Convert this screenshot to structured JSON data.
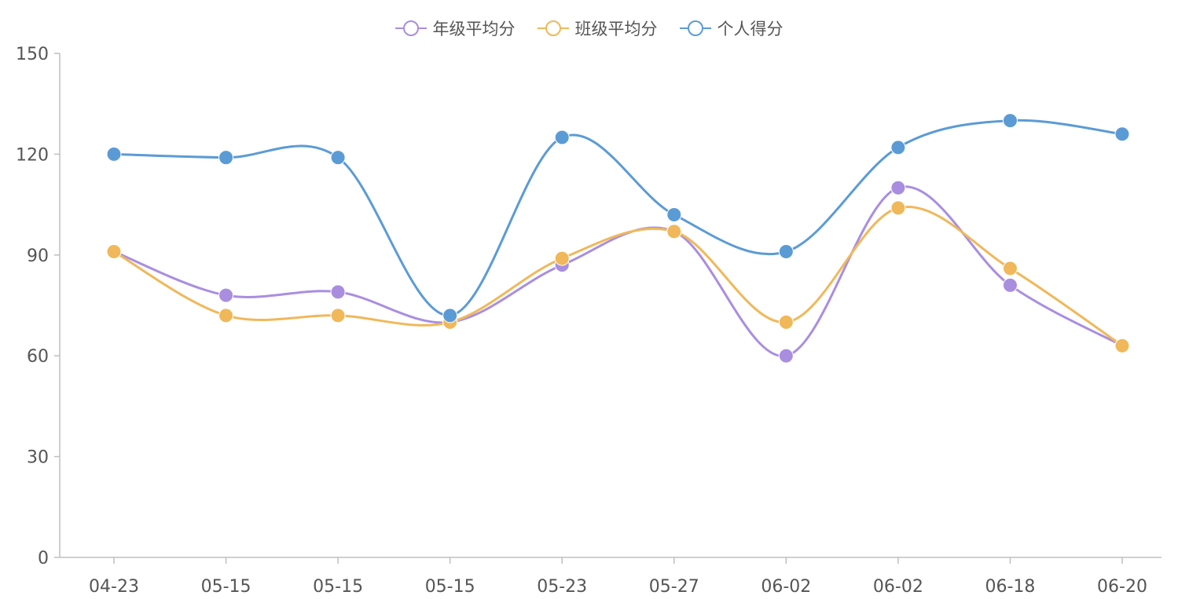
{
  "chart_data": {
    "type": "line",
    "categories": [
      "04-23",
      "05-15",
      "05-15",
      "05-15",
      "05-23",
      "05-27",
      "06-02",
      "06-02",
      "06-18",
      "06-20"
    ],
    "series": [
      {
        "name": "年级平均分",
        "color": "#a98ee0",
        "values": [
          91,
          78,
          79,
          70,
          87,
          97,
          60,
          110,
          81,
          63
        ]
      },
      {
        "name": "班级平均分",
        "color": "#f0b85a",
        "values": [
          91,
          72,
          72,
          70,
          89,
          97,
          70,
          104,
          86,
          63
        ]
      },
      {
        "name": "个人得分",
        "color": "#5b9bd5",
        "values": [
          120,
          119,
          119,
          72,
          125,
          102,
          91,
          122,
          130,
          126
        ]
      }
    ],
    "ylim": [
      0,
      150
    ],
    "yticks": [
      0,
      30,
      60,
      90,
      120,
      150
    ],
    "ytick_labels": [
      "0",
      "30",
      "60",
      "90",
      "120",
      "150"
    ],
    "legend_position": "top",
    "grid": false,
    "smooth": true
  }
}
